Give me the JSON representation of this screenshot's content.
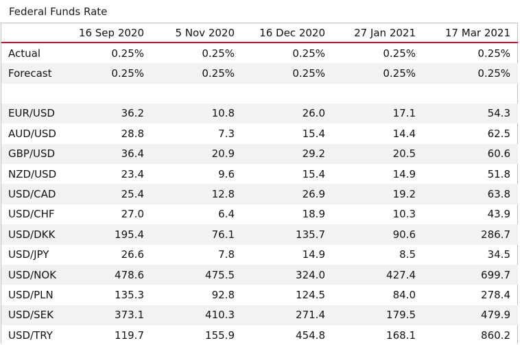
{
  "title": "Federal Funds Rate",
  "columns": [
    "",
    "16 Sep 2020",
    "5 Nov 2020",
    "16 Dec 2020",
    "27 Jan 2021",
    "17 Mar 2021"
  ],
  "rate_rows": [
    {
      "label": "Actual",
      "values": [
        "0.25%",
        "0.25%",
        "0.25%",
        "0.25%",
        "0.25%"
      ]
    },
    {
      "label": "Forecast",
      "values": [
        "0.25%",
        "0.25%",
        "0.25%",
        "0.25%",
        "0.25%"
      ]
    }
  ],
  "pair_rows": [
    {
      "label": "EUR/USD",
      "values": [
        "36.2",
        "10.8",
        "26.0",
        "17.1",
        "54.3"
      ]
    },
    {
      "label": "AUD/USD",
      "values": [
        "28.8",
        "7.3",
        "15.4",
        "14.4",
        "62.5"
      ]
    },
    {
      "label": "GBP/USD",
      "values": [
        "36.4",
        "20.9",
        "29.2",
        "20.5",
        "60.6"
      ]
    },
    {
      "label": "NZD/USD",
      "values": [
        "23.4",
        "9.6",
        "15.4",
        "14.9",
        "51.8"
      ]
    },
    {
      "label": "USD/CAD",
      "values": [
        "25.4",
        "12.8",
        "26.9",
        "19.2",
        "63.8"
      ]
    },
    {
      "label": "USD/CHF",
      "values": [
        "27.0",
        "6.4",
        "18.9",
        "10.3",
        "43.9"
      ]
    },
    {
      "label": "USD/DKK",
      "values": [
        "195.4",
        "76.1",
        "135.7",
        "90.6",
        "286.7"
      ]
    },
    {
      "label": "USD/JPY",
      "values": [
        "26.6",
        "7.8",
        "14.9",
        "8.5",
        "34.5"
      ]
    },
    {
      "label": "USD/NOK",
      "values": [
        "478.6",
        "475.5",
        "324.0",
        "427.4",
        "699.7"
      ]
    },
    {
      "label": "USD/PLN",
      "values": [
        "135.3",
        "92.8",
        "124.5",
        "84.0",
        "278.4"
      ]
    },
    {
      "label": "USD/SEK",
      "values": [
        "373.1",
        "410.3",
        "271.4",
        "179.5",
        "479.9"
      ]
    },
    {
      "label": "USD/TRY",
      "values": [
        "119.7",
        "155.9",
        "454.8",
        "168.1",
        "860.2"
      ]
    }
  ],
  "colors": {
    "header_rule": "#c8102e",
    "shaded_row": "#f2f2f2",
    "border": "#bfbfbf"
  }
}
